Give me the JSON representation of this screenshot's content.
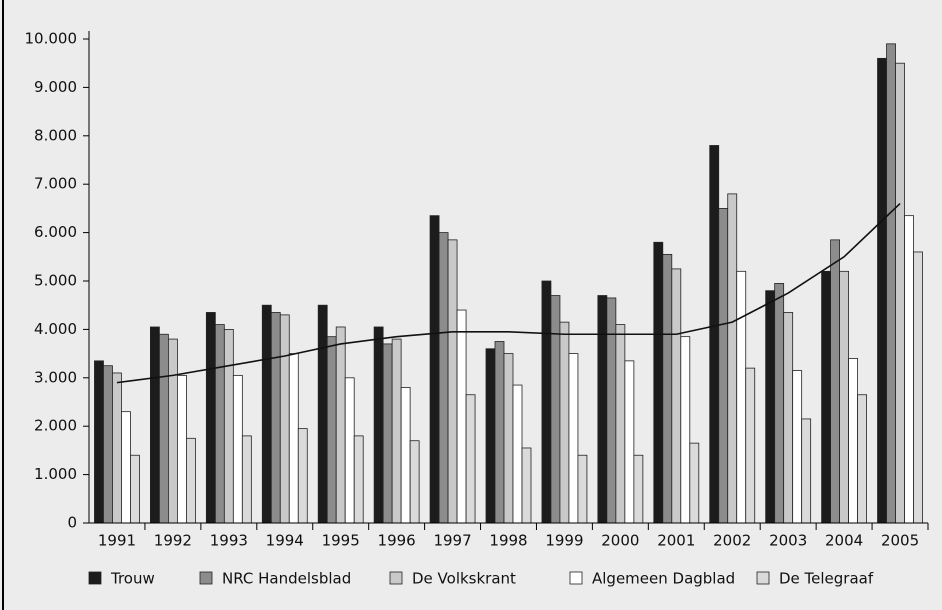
{
  "chart_data": {
    "type": "bar",
    "categories": [
      "1991",
      "1992",
      "1993",
      "1994",
      "1995",
      "1996",
      "1997",
      "1998",
      "1999",
      "2000",
      "2001",
      "2002",
      "2003",
      "2004",
      "2005"
    ],
    "series": [
      {
        "name": "Trouw",
        "color": "#1c1c1c",
        "values": [
          3350,
          4050,
          4350,
          4500,
          4500,
          4050,
          6350,
          3600,
          5000,
          4700,
          5800,
          7800,
          4800,
          5200,
          9600
        ]
      },
      {
        "name": "NRC Handelsblad",
        "color": "#8c8c8c",
        "values": [
          3250,
          3900,
          4100,
          4350,
          3850,
          3700,
          6000,
          3750,
          4700,
          4650,
          5550,
          6500,
          4950,
          5850,
          9900
        ]
      },
      {
        "name": "De Volkskrant",
        "color": "#c9c9c9",
        "values": [
          3100,
          3800,
          4000,
          4300,
          4050,
          3800,
          5850,
          3500,
          4150,
          4100,
          5250,
          6800,
          4350,
          5200,
          9500
        ]
      },
      {
        "name": "Algemeen Dagblad",
        "color": "#ffffff",
        "values": [
          2300,
          3050,
          3050,
          3500,
          3000,
          2800,
          4400,
          2850,
          3500,
          3350,
          3850,
          5200,
          3150,
          3400,
          6350
        ]
      },
      {
        "name": "De Telegraaf",
        "color": "#dadada",
        "values": [
          1400,
          1750,
          1800,
          1950,
          1800,
          1700,
          2650,
          1550,
          1400,
          1400,
          1650,
          3200,
          2150,
          2650,
          5600
        ]
      }
    ],
    "trend": {
      "color": "#111111",
      "values": [
        2900,
        3050,
        3250,
        3450,
        3700,
        3850,
        3950,
        3950,
        3900,
        3900,
        3900,
        4150,
        4750,
        5500,
        6600
      ]
    },
    "ylim": [
      0,
      10000
    ],
    "yticks": [
      0,
      {
        "value": 1000,
        "label": "1.000"
      },
      {
        "value": 2000,
        "label": "2.000"
      },
      {
        "value": 3000,
        "label": "3.000"
      },
      {
        "value": 4000,
        "label": "4.000"
      },
      {
        "value": 5000,
        "label": "5.000"
      },
      {
        "value": 6000,
        "label": "6.000"
      },
      {
        "value": 7000,
        "label": "7.000"
      },
      {
        "value": 8000,
        "label": "8.000"
      },
      {
        "value": 9000,
        "label": "9.000"
      },
      {
        "value": 10000,
        "label": "10.000"
      }
    ],
    "legend": "bottom"
  }
}
